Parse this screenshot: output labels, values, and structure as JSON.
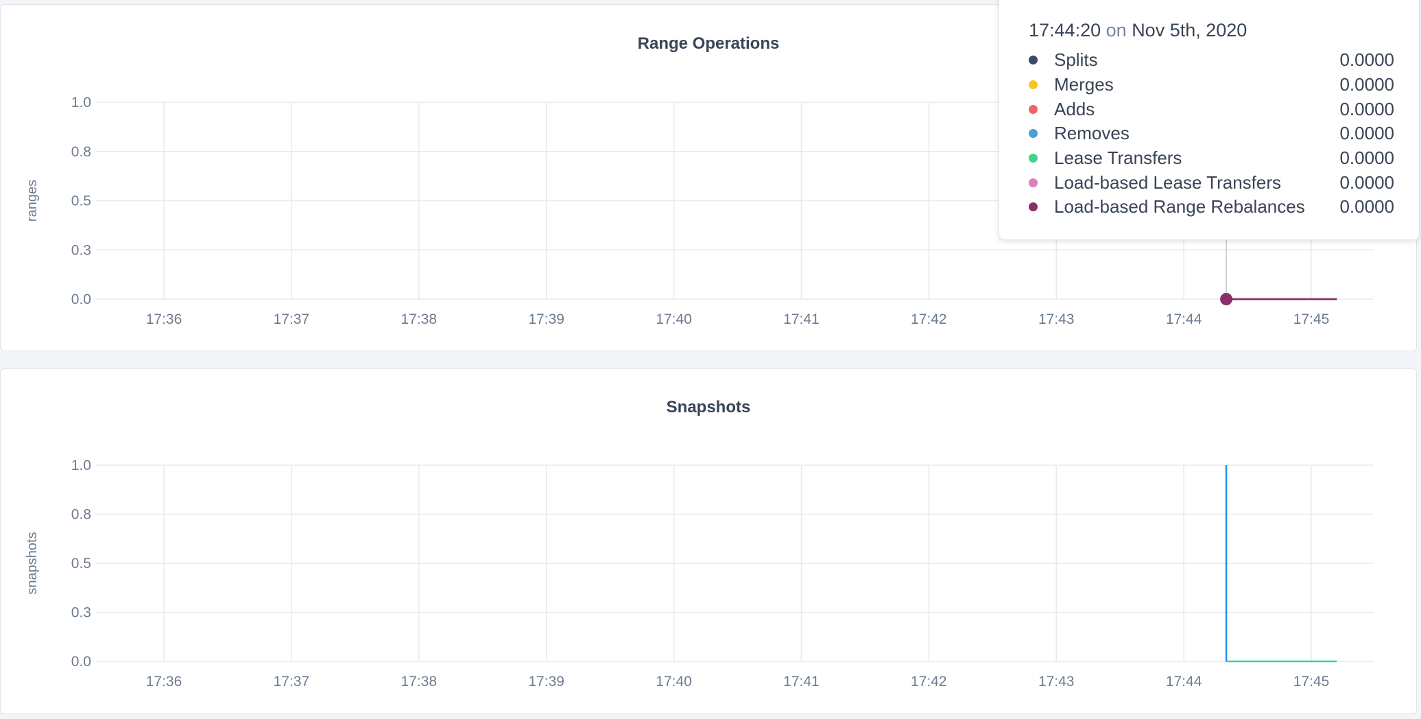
{
  "chart_data": [
    {
      "type": "line",
      "title": "Range Operations",
      "ylabel": "ranges",
      "xlabel": "",
      "x_ticks": [
        "17:36",
        "17:37",
        "17:38",
        "17:39",
        "17:40",
        "17:41",
        "17:42",
        "17:43",
        "17:44",
        "17:45"
      ],
      "y_ticks": [
        {
          "value": 0,
          "label": "0.0"
        },
        {
          "value": 0.25,
          "label": "0.3"
        },
        {
          "value": 0.5,
          "label": "0.5"
        },
        {
          "value": 0.75,
          "label": "0.8"
        },
        {
          "value": 1,
          "label": "1.0"
        }
      ],
      "xlim": [
        "17:35:25",
        "17:45:40"
      ],
      "ylim": [
        0,
        1
      ],
      "grid": true,
      "series": [
        {
          "name": "Splits",
          "color": "#3a4a64",
          "x": [
            "17:44:20",
            "17:45:12"
          ],
          "y": [
            0,
            0
          ]
        },
        {
          "name": "Merges",
          "color": "#f8c41f",
          "x": [
            "17:44:20",
            "17:45:12"
          ],
          "y": [
            0,
            0
          ]
        },
        {
          "name": "Adds",
          "color": "#ee6464",
          "x": [
            "17:44:20",
            "17:45:12"
          ],
          "y": [
            0,
            0
          ]
        },
        {
          "name": "Removes",
          "color": "#4b9fd5",
          "x": [
            "17:44:20",
            "17:45:12"
          ],
          "y": [
            0,
            0
          ]
        },
        {
          "name": "Lease Transfers",
          "color": "#3fd48a",
          "x": [
            "17:44:20",
            "17:45:12"
          ],
          "y": [
            0,
            0
          ]
        },
        {
          "name": "Load-based Lease Transfers",
          "color": "#dd7ec5",
          "x": [
            "17:44:20",
            "17:45:12"
          ],
          "y": [
            0,
            0
          ]
        },
        {
          "name": "Load-based Range Rebalances",
          "color": "#8a2e68",
          "x": [
            "17:44:20",
            "17:45:12"
          ],
          "y": [
            0,
            0
          ]
        }
      ],
      "hover": {
        "time": "17:44:20",
        "on": "on",
        "date": "Nov 5th, 2020",
        "values": [
          "0.0000",
          "0.0000",
          "0.0000",
          "0.0000",
          "0.0000",
          "0.0000",
          "0.0000"
        ]
      }
    },
    {
      "type": "line",
      "title": "Snapshots",
      "ylabel": "snapshots",
      "xlabel": "",
      "x_ticks": [
        "17:36",
        "17:37",
        "17:38",
        "17:39",
        "17:40",
        "17:41",
        "17:42",
        "17:43",
        "17:44",
        "17:45"
      ],
      "y_ticks": [
        {
          "value": 0,
          "label": "0.0"
        },
        {
          "value": 0.25,
          "label": "0.3"
        },
        {
          "value": 0.5,
          "label": "0.5"
        },
        {
          "value": 0.75,
          "label": "0.8"
        },
        {
          "value": 1,
          "label": "1.0"
        }
      ],
      "xlim": [
        "17:35:25",
        "17:45:40"
      ],
      "ylim": [
        0,
        1
      ],
      "grid": true,
      "series": [
        {
          "color": "#3fd48a",
          "x": [
            "17:44:20",
            "17:45:12"
          ],
          "y": [
            0,
            0
          ]
        },
        {
          "color": "#1f8ef0",
          "x": [
            "17:44:20",
            "17:44:20"
          ],
          "y": [
            1,
            0
          ]
        }
      ]
    }
  ]
}
